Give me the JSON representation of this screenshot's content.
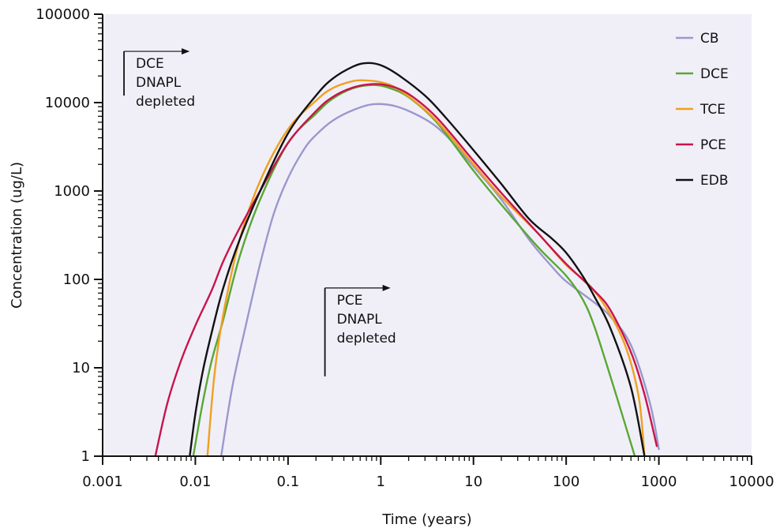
{
  "chart_data": {
    "type": "line",
    "title": "",
    "xlabel": "Time (years)",
    "ylabel": "Concentration (ug/L)",
    "xscale": "log",
    "yscale": "log",
    "xlim": [
      0.001,
      10000
    ],
    "ylim": [
      1,
      100000
    ],
    "xticks": [
      0.001,
      0.01,
      0.1,
      1,
      10,
      100,
      1000,
      10000
    ],
    "xtick_labels": [
      "0.001",
      "0.01",
      "0.1",
      "1",
      "10",
      "100",
      "1000",
      "10000"
    ],
    "yticks": [
      1,
      10,
      100,
      1000,
      10000,
      100000
    ],
    "ytick_labels": [
      "1",
      "10",
      "100",
      "1000",
      "10000",
      "100000"
    ],
    "grid": false,
    "background": "#f0eff8",
    "legend": {
      "placement": "top-right"
    },
    "series": [
      {
        "name": "CB",
        "color": "#9b98cc",
        "x": [
          0.019,
          0.025,
          0.035,
          0.05,
          0.07,
          0.1,
          0.15,
          0.2,
          0.3,
          0.5,
          0.85,
          1.5,
          3,
          5,
          10,
          20,
          40,
          70,
          100,
          200,
          300,
          500,
          800,
          1000
        ],
        "y": [
          1,
          6,
          30,
          150,
          550,
          1400,
          3000,
          4300,
          6200,
          8200,
          9600,
          9000,
          6500,
          4300,
          1900,
          800,
          280,
          140,
          95,
          55,
          38,
          18,
          4,
          1.2
        ]
      },
      {
        "name": "DCE",
        "color": "#58a832",
        "x": [
          0.0095,
          0.012,
          0.015,
          0.02,
          0.03,
          0.05,
          0.1,
          0.2,
          0.3,
          0.5,
          0.8,
          1.2,
          2,
          4,
          10,
          20,
          50,
          100,
          150,
          200,
          300,
          400,
          550
        ],
        "y": [
          1,
          4,
          12,
          35,
          180,
          800,
          3500,
          7500,
          11000,
          14500,
          15800,
          14800,
          11500,
          6000,
          1700,
          700,
          230,
          110,
          60,
          30,
          8,
          3,
          1
        ]
      },
      {
        "name": "TCE",
        "color": "#f0a020",
        "x": [
          0.0135,
          0.016,
          0.02,
          0.03,
          0.05,
          0.1,
          0.2,
          0.3,
          0.5,
          0.7,
          1,
          1.5,
          3,
          5,
          10,
          20,
          50,
          100,
          200,
          400,
          600,
          700
        ],
        "y": [
          1,
          8,
          40,
          280,
          1300,
          5000,
          10500,
          14500,
          17500,
          17800,
          17000,
          14500,
          8300,
          4800,
          2000,
          860,
          330,
          145,
          75,
          22,
          5,
          1
        ]
      },
      {
        "name": "PCE",
        "color": "#c8144a",
        "x": [
          0.0037,
          0.005,
          0.007,
          0.01,
          0.015,
          0.02,
          0.03,
          0.05,
          0.1,
          0.2,
          0.3,
          0.5,
          0.8,
          1.2,
          2,
          4,
          10,
          20,
          50,
          100,
          200,
          300,
          500,
          700,
          950
        ],
        "y": [
          1,
          4,
          12,
          30,
          75,
          160,
          380,
          1000,
          3500,
          8000,
          11500,
          14800,
          16200,
          15600,
          12500,
          6800,
          2200,
          950,
          330,
          150,
          75,
          45,
          15,
          5,
          1.3
        ]
      },
      {
        "name": "EDB",
        "color": "#111111",
        "x": [
          0.0087,
          0.01,
          0.012,
          0.015,
          0.02,
          0.03,
          0.05,
          0.1,
          0.2,
          0.3,
          0.5,
          0.7,
          1,
          1.5,
          3,
          5,
          10,
          20,
          40,
          70,
          100,
          150,
          200,
          300,
          500,
          700
        ],
        "y": [
          1,
          3,
          9,
          25,
          80,
          280,
          1000,
          4500,
          12000,
          18500,
          25500,
          28000,
          26500,
          21000,
          12000,
          6800,
          2900,
          1200,
          480,
          290,
          200,
          110,
          65,
          28,
          6,
          1
        ]
      }
    ],
    "annotations": [
      {
        "lines": [
          "DCE",
          "DNAPL",
          "depleted"
        ],
        "x": 0.0017,
        "y_top": 38000,
        "y_bottom": 12000
      },
      {
        "lines": [
          "PCE",
          "DNAPL",
          "depleted"
        ],
        "x": 0.25,
        "y_top": 80,
        "y_bottom": 8
      }
    ]
  }
}
